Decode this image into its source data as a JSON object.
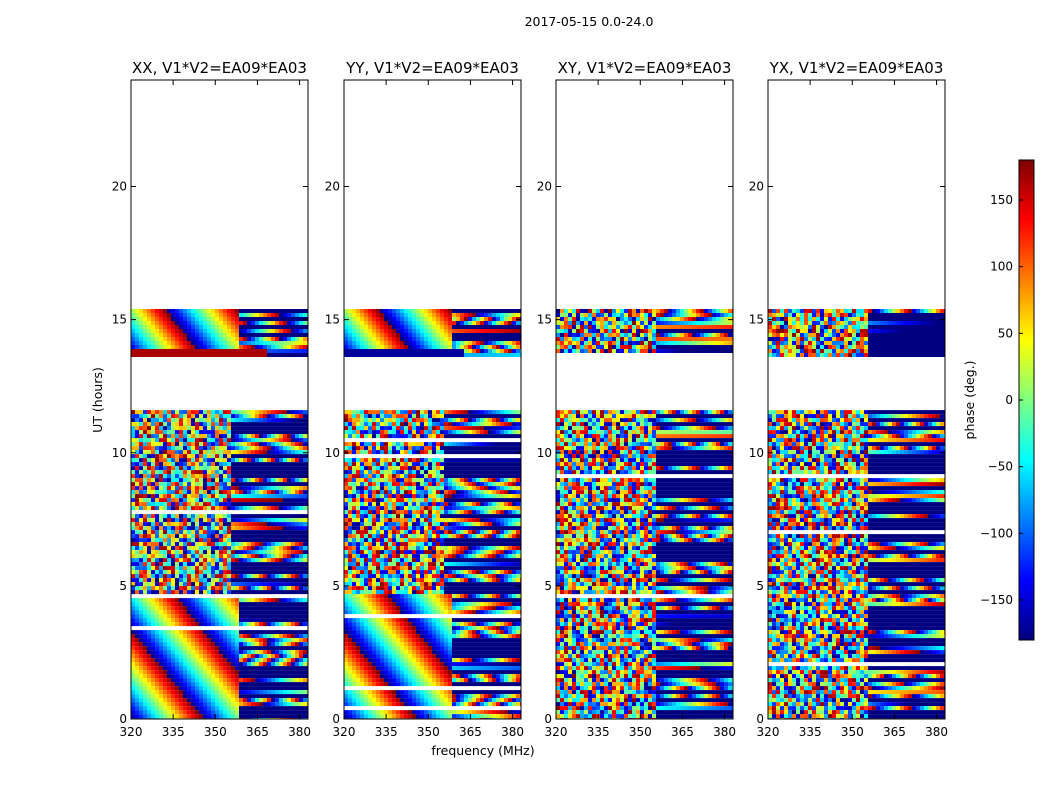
{
  "chart_data": {
    "type": "heatmap",
    "suptitle": "2017-05-15 0.0-24.0",
    "xlabel": "frequency (MHz)",
    "ylabel": "UT (hours)",
    "xlim": [
      320,
      383
    ],
    "ylim": [
      0,
      24
    ],
    "xticks": [
      "320",
      "335",
      "350",
      "365",
      "380"
    ],
    "yticks": [
      "0",
      "5",
      "10",
      "15",
      "20"
    ],
    "colorbar": {
      "label": "phase (deg.)",
      "range": [
        -180,
        180
      ],
      "ticks": [
        "150",
        "100",
        "50",
        "0",
        "−50",
        "−100",
        "−150"
      ],
      "colormap": [
        "#00007f",
        "#0000ff",
        "#007fff",
        "#00ffff",
        "#7fff7f",
        "#ffff00",
        "#ff7f00",
        "#ff0000",
        "#7f0000"
      ]
    },
    "panels": [
      {
        "title": "XX, V1*V2=EA09*EA03",
        "polarization": "XX"
      },
      {
        "title": "YY, V1*V2=EA09*EA03",
        "polarization": "YY"
      },
      {
        "title": "XY, V1*V2=EA09*EA03",
        "polarization": "XY"
      },
      {
        "title": "YX, V1*V2=EA09*EA03",
        "polarization": "YX"
      }
    ],
    "data_coverage_ut": [
      [
        0.0,
        11.6
      ],
      [
        13.6,
        15.4
      ]
    ],
    "gap_ut": [
      [
        11.6,
        13.6
      ],
      [
        15.4,
        24.0
      ]
    ]
  }
}
